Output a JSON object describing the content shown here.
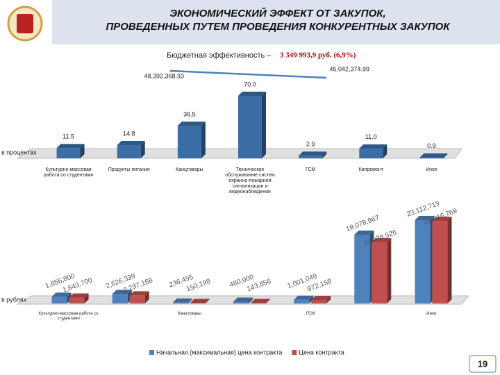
{
  "header": {
    "title_lines": [
      "ЭКОНОМИЧЕСКИЙ ЭФФЕКТ ОТ ЗАКУПОК,",
      "ПРОВЕДЕННЫХ ПУТЕМ ПРОВЕДЕНИЯ КОНКУРЕНТНЫХ ЗАКУПОК"
    ]
  },
  "page_number": "19",
  "chart_data": [
    {
      "type": "line",
      "title": "Бюджетная эффективность – ",
      "subtitle": "3 349 993,9 руб. (6,9%)",
      "values": [
        48392368.93,
        45042374.99
      ],
      "value_labels": [
        "48,392,368.93",
        "45,042,374.99"
      ],
      "color": "#4f81bd"
    },
    {
      "type": "bar",
      "axis_label": "в процентах",
      "categories": [
        "Культурно-массовая работа со студентами",
        "Продукты питания",
        "Канцтовары",
        "Техническое обслуживание систем охранно-пожарной сигнализации и видеонаблюдения",
        "ГСМ",
        "Капремонт",
        "Иное"
      ],
      "values": [
        11.5,
        14.8,
        36.5,
        70.0,
        2.9,
        11.0,
        0.9
      ],
      "value_labels": [
        "11.5",
        "14.8",
        "36.5",
        "70.0",
        "2.9",
        "11.0",
        "0.9"
      ],
      "color": "#3a6ea5"
    },
    {
      "type": "bar",
      "axis_label": "в рублях",
      "categories": [
        "Культурно-массовая работа со студентами",
        null,
        "Канцтовары",
        null,
        "ГСМ",
        null,
        "Иное"
      ],
      "series": [
        {
          "name": "Начальная (максимальная) цена контракта",
          "color": "#4f81bd",
          "values": [
            1856800,
            2626339,
            236495,
            480000,
            1001049,
            19078967,
            23112719
          ],
          "value_labels": [
            "1,856,800",
            "2,626,339",
            "236,495",
            "480,000",
            "1,001,049",
            "19,078,967",
            "23,112,719"
          ]
        },
        {
          "name": "Цена контракта",
          "color": "#c0504d",
          "values": [
            1643700,
            2237168,
            150198,
            143856,
            972158,
            16978526,
            22916769
          ],
          "value_labels": [
            "1,643,700",
            "2,237,168",
            "150,198",
            "143,856",
            "972,158",
            "16,978,526",
            "22,916,769"
          ]
        }
      ],
      "legend": "bottom"
    }
  ]
}
